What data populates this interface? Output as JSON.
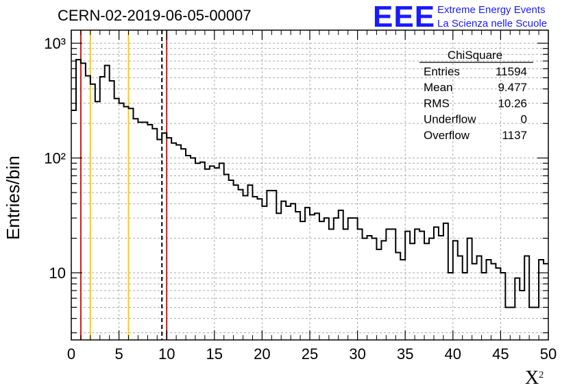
{
  "title": "CERN-02-2019-06-05-00007",
  "logo": {
    "text": "EEE",
    "line1": "Extreme Energy Events",
    "line2": "La Scienza nelle Scuole"
  },
  "stats": {
    "name": "ChiSquare",
    "rows": [
      {
        "label": "Entries",
        "value": "11594"
      },
      {
        "label": "Mean",
        "value": "9.477"
      },
      {
        "label": "RMS",
        "value": "10.26"
      },
      {
        "label": "Underflow",
        "value": "0"
      },
      {
        "label": "Overflow",
        "value": "1137"
      }
    ]
  },
  "colors": {
    "histogram": "#000000",
    "red_lines": "#dd1111",
    "yellow_lines": "#ffcc00",
    "dashed_line": "#000000",
    "logo": "#1a1aff"
  },
  "chart_data": {
    "type": "histogram",
    "title": "CERN-02-2019-06-05-00007",
    "xlabel": "X",
    "xlabel_superscript": "2",
    "ylabel": "Entries/bin",
    "xlim": [
      0,
      50
    ],
    "ylim": [
      2.6,
      1300
    ],
    "y_scale": "log",
    "grid": true,
    "bin_width": 0.5,
    "x_ticks": [
      0,
      5,
      10,
      15,
      20,
      25,
      30,
      35,
      40,
      45,
      50
    ],
    "y_ticks": [
      {
        "value": 10,
        "label": "10"
      },
      {
        "value": 100,
        "label": "10²"
      },
      {
        "value": 1000,
        "label": "10³"
      }
    ],
    "values": [
      260,
      720,
      670,
      520,
      440,
      310,
      510,
      640,
      470,
      330,
      300,
      280,
      270,
      220,
      205,
      205,
      195,
      180,
      145,
      165,
      150,
      135,
      130,
      120,
      105,
      100,
      90,
      92,
      80,
      85,
      82,
      90,
      72,
      64,
      58,
      53,
      47,
      58,
      46,
      44,
      38,
      52,
      52,
      33,
      42,
      38,
      40,
      34,
      28,
      37,
      32,
      33,
      28,
      30,
      24,
      30,
      35,
      24,
      30,
      30,
      24,
      20,
      21,
      20,
      16,
      19,
      24,
      24,
      15,
      13,
      23,
      18,
      24,
      23,
      18,
      20,
      25,
      21,
      27,
      10,
      19,
      14,
      10,
      20,
      12,
      14,
      10,
      13,
      12,
      11,
      10,
      5,
      5,
      9,
      7,
      14,
      5,
      5,
      13,
      12
    ],
    "vertical_lines": [
      {
        "x": 1,
        "color": "red",
        "style": "solid"
      },
      {
        "x": 2,
        "color": "yellow",
        "style": "solid"
      },
      {
        "x": 6,
        "color": "yellow",
        "style": "solid"
      },
      {
        "x": 9.5,
        "color": "black",
        "style": "dashed"
      },
      {
        "x": 10,
        "color": "red",
        "style": "solid"
      }
    ]
  }
}
